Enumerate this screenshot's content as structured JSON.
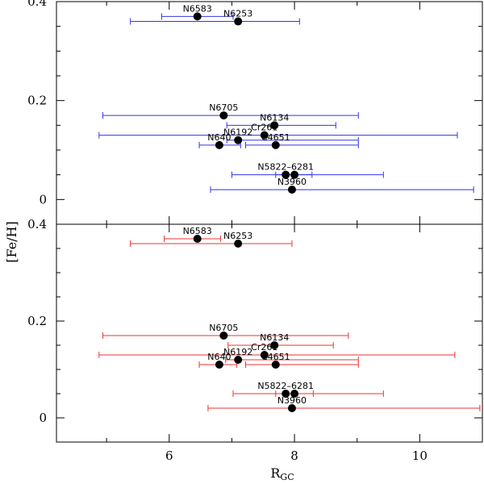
{
  "chart_data": {
    "type": "scatter",
    "xlabel": "R",
    "xlabel_subscript": "GC",
    "ylabel": "[Fe/H]",
    "xlim": [
      4.2,
      11.0
    ],
    "ylim": [
      -0.05,
      0.4
    ],
    "xticks": [
      6,
      8,
      10
    ],
    "yticks": [
      0,
      0.2,
      0.4
    ],
    "panels": [
      {
        "name": "top",
        "error_color": "#3333ee",
        "points": [
          {
            "label": "N6583",
            "x": 6.45,
            "y": 0.37,
            "xerr_low": 5.88,
            "xerr_high": 7.02
          },
          {
            "label": "N6253",
            "x": 7.1,
            "y": 0.36,
            "xerr_low": 5.38,
            "xerr_high": 8.08
          },
          {
            "label": "N6705",
            "x": 6.87,
            "y": 0.17,
            "xerr_low": 4.94,
            "xerr_high": 9.02
          },
          {
            "label": "N6134",
            "x": 7.68,
            "y": 0.15,
            "xerr_low": 6.92,
            "xerr_high": 8.66
          },
          {
            "label": "Cr261",
            "x": 7.52,
            "y": 0.13,
            "xerr_low": 4.88,
            "xerr_high": 10.6
          },
          {
            "label": "N6192",
            "x": 7.1,
            "y": 0.12,
            "xerr_low": 6.92,
            "xerr_high": 9.02
          },
          {
            "label": "N6404",
            "x": 6.8,
            "y": 0.11,
            "xerr_low": 6.48,
            "xerr_high": 7.14
          },
          {
            "label": "IC4651",
            "x": 7.7,
            "y": 0.11,
            "xerr_low": 7.22,
            "xerr_high": 9.02
          },
          {
            "label": "N5822",
            "x": 7.86,
            "y": 0.05,
            "xerr_low": 7.0,
            "xerr_high": 9.42
          },
          {
            "label": "N6281",
            "x": 8.0,
            "y": 0.05,
            "xerr_low": 7.7,
            "xerr_high": 8.28
          },
          {
            "label": "N3960",
            "x": 7.96,
            "y": 0.02,
            "xerr_low": 6.66,
            "xerr_high": 10.86
          }
        ]
      },
      {
        "name": "bottom",
        "error_color": "#ee3333",
        "points": [
          {
            "label": "N6583",
            "x": 6.45,
            "y": 0.37,
            "xerr_low": 5.92,
            "xerr_high": 6.82
          },
          {
            "label": "N6253",
            "x": 7.1,
            "y": 0.36,
            "xerr_low": 5.38,
            "xerr_high": 7.96
          },
          {
            "label": "N6705",
            "x": 6.87,
            "y": 0.17,
            "xerr_low": 4.94,
            "xerr_high": 8.86
          },
          {
            "label": "N6134",
            "x": 7.68,
            "y": 0.15,
            "xerr_low": 6.94,
            "xerr_high": 8.62
          },
          {
            "label": "Cr261",
            "x": 7.52,
            "y": 0.13,
            "xerr_low": 4.88,
            "xerr_high": 10.56
          },
          {
            "label": "N6192",
            "x": 7.1,
            "y": 0.12,
            "xerr_low": 6.9,
            "xerr_high": 9.02
          },
          {
            "label": "N6404",
            "x": 6.8,
            "y": 0.11,
            "xerr_low": 6.48,
            "xerr_high": 7.08
          },
          {
            "label": "IC4651",
            "x": 7.7,
            "y": 0.11,
            "xerr_low": 7.22,
            "xerr_high": 9.02
          },
          {
            "label": "N5822",
            "x": 7.86,
            "y": 0.05,
            "xerr_low": 7.02,
            "xerr_high": 9.42
          },
          {
            "label": "N6281",
            "x": 8.0,
            "y": 0.05,
            "xerr_low": 7.7,
            "xerr_high": 8.3
          },
          {
            "label": "N3960",
            "x": 7.96,
            "y": 0.02,
            "xerr_low": 6.62,
            "xerr_high": 10.96
          }
        ]
      }
    ],
    "visible_labels": [
      {
        "text": "N6583",
        "for": "N6583"
      },
      {
        "text": "N6253",
        "for": "N6253"
      },
      {
        "text": "N6705",
        "for": "N6705"
      },
      {
        "text": "N6134",
        "for": "N6134"
      },
      {
        "text": "Cr261",
        "for": "Cr261"
      },
      {
        "text": "N6192",
        "for": "N6192"
      },
      {
        "text": "N640",
        "for": "N6404"
      },
      {
        "text": "C4651",
        "for": "IC4651"
      },
      {
        "text": "N5822–6281",
        "for": "N5822"
      },
      {
        "text": "N3960",
        "for": "N3960"
      }
    ]
  }
}
